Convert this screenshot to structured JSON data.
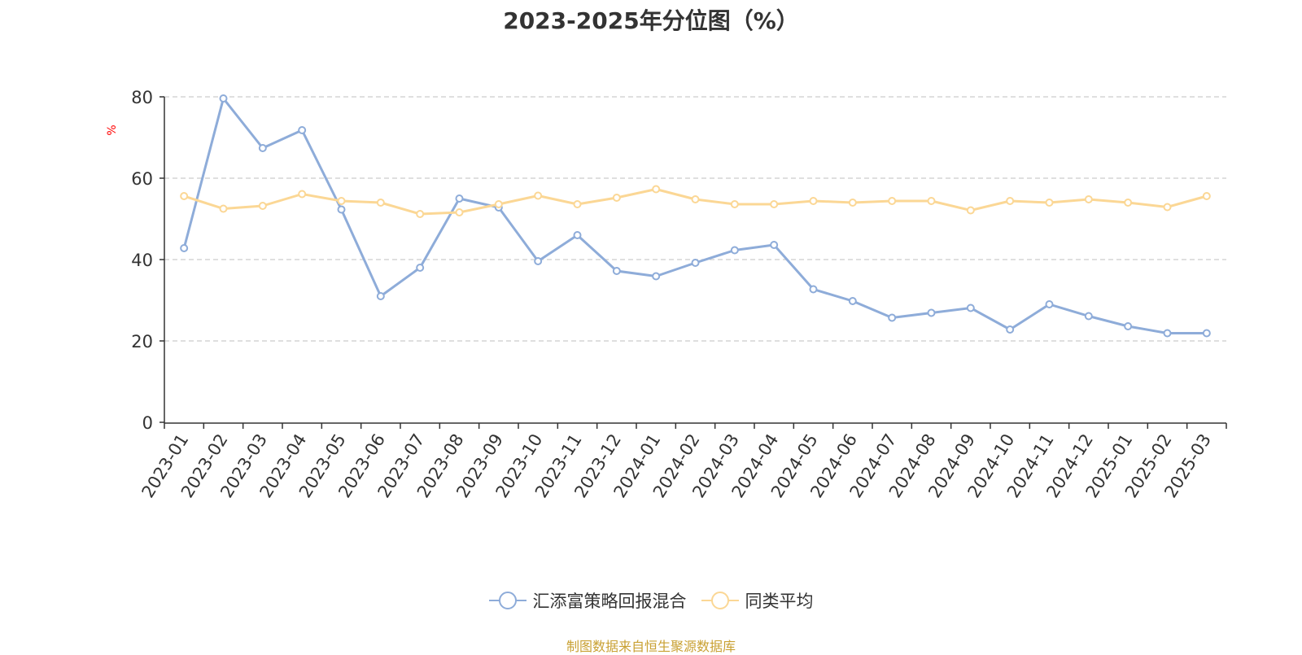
{
  "chart_data": {
    "type": "line",
    "title": "2023-2025年分位图（%）",
    "ylabel": "%",
    "ylim": [
      0,
      80
    ],
    "yticks": [
      0,
      20,
      40,
      60,
      80
    ],
    "grid": true,
    "legend_position": "bottom",
    "categories": [
      "2023-01",
      "2023-02",
      "2023-03",
      "2023-04",
      "2023-05",
      "2023-06",
      "2023-07",
      "2023-08",
      "2023-09",
      "2023-10",
      "2023-11",
      "2023-12",
      "2024-01",
      "2024-02",
      "2024-03",
      "2024-04",
      "2024-05",
      "2024-06",
      "2024-07",
      "2024-08",
      "2024-09",
      "2024-10",
      "2024-11",
      "2024-12",
      "2025-01",
      "2025-02",
      "2025-03"
    ],
    "series": [
      {
        "name": "汇添富策略回报混合",
        "color": "#8eacd9",
        "values": [
          42.8,
          79.6,
          67.4,
          71.8,
          52.3,
          31.0,
          38.0,
          55.0,
          52.8,
          39.6,
          46.0,
          37.2,
          35.9,
          39.2,
          42.3,
          43.6,
          32.7,
          29.8,
          25.7,
          26.9,
          28.1,
          22.8,
          29.0,
          26.1,
          23.6,
          21.9,
          21.9
        ]
      },
      {
        "name": "同类平均",
        "color": "#fbd795",
        "values": [
          55.6,
          52.5,
          53.2,
          56.1,
          54.4,
          54.0,
          51.2,
          51.6,
          53.6,
          55.7,
          53.6,
          55.2,
          57.3,
          54.8,
          53.6,
          53.6,
          54.4,
          54.0,
          54.4,
          54.4,
          52.1,
          54.4,
          54.0,
          54.8,
          54.0,
          52.9,
          55.6
        ]
      }
    ]
  },
  "footer": {
    "source_note": "制图数据来自恒生聚源数据库"
  }
}
